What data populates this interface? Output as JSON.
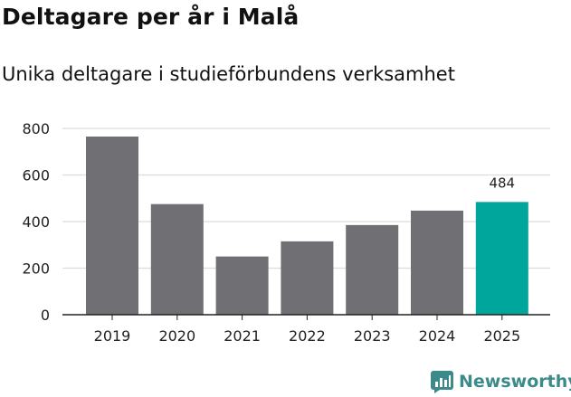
{
  "header": {
    "title": "Deltagare per år i Malå",
    "subtitle": "Unika deltagare i studieförbundens verksamhet"
  },
  "brand": {
    "name": "Newsworthy",
    "icon": "bar-chart-logo-icon",
    "color": "#3c8a8a"
  },
  "colors": {
    "bar": "#706f73",
    "highlight": "#00a59b",
    "grid": "#dcdcdc",
    "axis": "#222222",
    "text": "#222222"
  },
  "chart_data": {
    "type": "bar",
    "title": "Deltagare per år i Malå",
    "subtitle": "Unika deltagare i studieförbundens verksamhet",
    "xlabel": "",
    "ylabel": "",
    "categories": [
      "2019",
      "2020",
      "2021",
      "2022",
      "2023",
      "2024",
      "2025"
    ],
    "values": [
      765,
      475,
      250,
      315,
      385,
      447,
      484
    ],
    "ylim": [
      0,
      800
    ],
    "yticks": [
      0,
      200,
      400,
      600,
      800
    ],
    "grid": true,
    "highlight_index": 6,
    "data_labels": [
      {
        "index": 6,
        "text": "484"
      }
    ]
  }
}
